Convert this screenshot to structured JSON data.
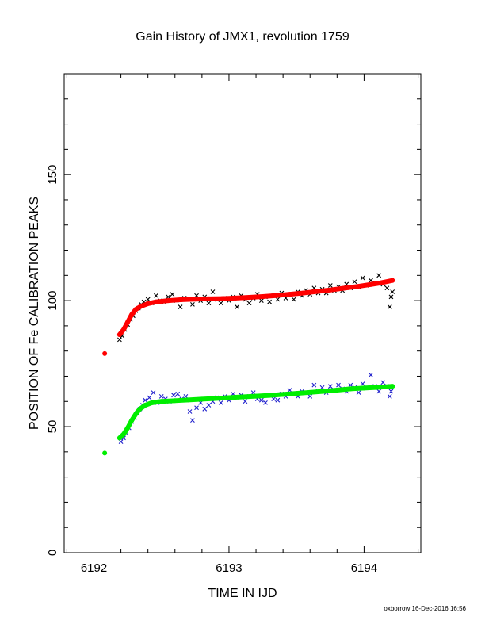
{
  "chart_data": {
    "type": "scatter",
    "title": "Gain History of JMX1, revolution 1759",
    "xlabel": "TIME IN IJD",
    "ylabel": "POSITION OF Fe CALIBRATION PEAKS",
    "xlim": [
      6191.78,
      6194.42
    ],
    "ylim": [
      0,
      190
    ],
    "x_ticks": [
      "6192",
      "6193",
      "6194"
    ],
    "y_ticks": [
      "0",
      "50",
      "100",
      "150"
    ],
    "x_minor_step": 0.2,
    "y_minor_step": 10,
    "grid": false,
    "series": [
      {
        "marker": "cross",
        "color": "#000000",
        "points": [
          [
            6192.19,
            84.5
          ],
          [
            6192.21,
            86.0
          ],
          [
            6192.23,
            88.5
          ],
          [
            6192.25,
            90.5
          ],
          [
            6192.27,
            92.5
          ],
          [
            6192.29,
            94.0
          ],
          [
            6192.31,
            96.0
          ],
          [
            6192.33,
            97.0
          ],
          [
            6192.35,
            98.5
          ],
          [
            6192.37,
            99.5
          ],
          [
            6192.4,
            100.5
          ],
          [
            6192.43,
            99.0
          ],
          [
            6192.46,
            102.0
          ],
          [
            6192.49,
            100.0
          ],
          [
            6192.52,
            99.5
          ],
          [
            6192.55,
            101.5
          ],
          [
            6192.58,
            102.5
          ],
          [
            6192.61,
            100.0
          ],
          [
            6192.64,
            97.5
          ],
          [
            6192.67,
            101.0
          ],
          [
            6192.7,
            100.5
          ],
          [
            6192.73,
            98.5
          ],
          [
            6192.76,
            102.0
          ],
          [
            6192.79,
            100.0
          ],
          [
            6192.82,
            101.5
          ],
          [
            6192.85,
            99.0
          ],
          [
            6192.88,
            103.5
          ],
          [
            6192.91,
            100.5
          ],
          [
            6192.94,
            99.0
          ],
          [
            6192.97,
            101.0
          ],
          [
            6193.0,
            100.0
          ],
          [
            6193.03,
            101.5
          ],
          [
            6193.06,
            97.5
          ],
          [
            6193.09,
            102.0
          ],
          [
            6193.12,
            100.5
          ],
          [
            6193.15,
            99.0
          ],
          [
            6193.18,
            101.0
          ],
          [
            6193.21,
            102.5
          ],
          [
            6193.24,
            100.0
          ],
          [
            6193.27,
            101.5
          ],
          [
            6193.3,
            99.5
          ],
          [
            6193.33,
            102.0
          ],
          [
            6193.36,
            100.5
          ],
          [
            6193.39,
            103.0
          ],
          [
            6193.42,
            101.0
          ],
          [
            6193.45,
            102.5
          ],
          [
            6193.48,
            100.5
          ],
          [
            6193.51,
            103.5
          ],
          [
            6193.54,
            102.0
          ],
          [
            6193.57,
            104.0
          ],
          [
            6193.6,
            102.5
          ],
          [
            6193.63,
            105.0
          ],
          [
            6193.66,
            103.0
          ],
          [
            6193.69,
            104.5
          ],
          [
            6193.72,
            103.0
          ],
          [
            6193.75,
            106.0
          ],
          [
            6193.78,
            104.0
          ],
          [
            6193.81,
            105.5
          ],
          [
            6193.84,
            104.0
          ],
          [
            6193.87,
            106.5
          ],
          [
            6193.9,
            105.0
          ],
          [
            6193.93,
            107.5
          ],
          [
            6193.96,
            105.5
          ],
          [
            6193.99,
            109.0
          ],
          [
            6194.02,
            106.0
          ],
          [
            6194.05,
            108.0
          ],
          [
            6194.08,
            107.0
          ],
          [
            6194.11,
            110.0
          ],
          [
            6194.14,
            106.5
          ],
          [
            6194.17,
            105.0
          ],
          [
            6194.2,
            101.5
          ],
          [
            6194.21,
            103.5
          ],
          [
            6194.19,
            97.5
          ]
        ]
      },
      {
        "marker": "cross",
        "color": "#1f1fcc",
        "points": [
          [
            6192.2,
            44.0
          ],
          [
            6192.22,
            45.5
          ],
          [
            6192.24,
            47.5
          ],
          [
            6192.26,
            49.5
          ],
          [
            6192.28,
            52.0
          ],
          [
            6192.3,
            53.5
          ],
          [
            6192.32,
            55.5
          ],
          [
            6192.34,
            57.0
          ],
          [
            6192.36,
            58.5
          ],
          [
            6192.38,
            60.5
          ],
          [
            6192.41,
            61.5
          ],
          [
            6192.44,
            63.5
          ],
          [
            6192.47,
            59.5
          ],
          [
            6192.5,
            62.0
          ],
          [
            6192.53,
            61.0
          ],
          [
            6192.56,
            60.0
          ],
          [
            6192.59,
            62.5
          ],
          [
            6192.62,
            63.0
          ],
          [
            6192.65,
            61.0
          ],
          [
            6192.68,
            62.0
          ],
          [
            6192.71,
            56.0
          ],
          [
            6192.73,
            52.5
          ],
          [
            6192.76,
            57.5
          ],
          [
            6192.79,
            59.5
          ],
          [
            6192.82,
            57.0
          ],
          [
            6192.85,
            58.5
          ],
          [
            6192.88,
            60.0
          ],
          [
            6192.91,
            61.5
          ],
          [
            6192.94,
            59.5
          ],
          [
            6192.97,
            62.0
          ],
          [
            6193.0,
            60.5
          ],
          [
            6193.03,
            63.0
          ],
          [
            6193.06,
            61.5
          ],
          [
            6193.09,
            62.5
          ],
          [
            6193.12,
            60.0
          ],
          [
            6193.15,
            62.0
          ],
          [
            6193.18,
            63.5
          ],
          [
            6193.21,
            61.0
          ],
          [
            6193.24,
            60.5
          ],
          [
            6193.27,
            59.5
          ],
          [
            6193.3,
            62.5
          ],
          [
            6193.33,
            61.0
          ],
          [
            6193.36,
            60.5
          ],
          [
            6193.39,
            63.0
          ],
          [
            6193.42,
            62.0
          ],
          [
            6193.45,
            64.5
          ],
          [
            6193.48,
            63.0
          ],
          [
            6193.51,
            62.0
          ],
          [
            6193.54,
            64.0
          ],
          [
            6193.57,
            63.5
          ],
          [
            6193.6,
            62.0
          ],
          [
            6193.63,
            66.5
          ],
          [
            6193.66,
            64.0
          ],
          [
            6193.69,
            65.5
          ],
          [
            6193.72,
            63.5
          ],
          [
            6193.75,
            66.0
          ],
          [
            6193.78,
            64.5
          ],
          [
            6193.81,
            66.5
          ],
          [
            6193.84,
            65.0
          ],
          [
            6193.87,
            64.0
          ],
          [
            6193.9,
            66.5
          ],
          [
            6193.93,
            65.5
          ],
          [
            6193.96,
            63.5
          ],
          [
            6193.99,
            67.0
          ],
          [
            6194.02,
            65.5
          ],
          [
            6194.05,
            70.5
          ],
          [
            6194.08,
            66.0
          ],
          [
            6194.11,
            64.0
          ],
          [
            6194.14,
            67.5
          ],
          [
            6194.17,
            66.0
          ],
          [
            6194.19,
            62.0
          ],
          [
            6194.2,
            64.0
          ]
        ]
      },
      {
        "marker": "fit",
        "color": "#ff0000",
        "points": [
          [
            6192.08,
            79.0
          ],
          [
            6192.19,
            86.5
          ],
          [
            6192.22,
            88.5
          ],
          [
            6192.25,
            91.5
          ],
          [
            6192.28,
            94.5
          ],
          [
            6192.31,
            96.5
          ],
          [
            6192.35,
            97.8
          ],
          [
            6192.4,
            98.8
          ],
          [
            6192.46,
            99.5
          ],
          [
            6192.55,
            100.0
          ],
          [
            6192.65,
            100.4
          ],
          [
            6192.75,
            100.6
          ],
          [
            6192.85,
            100.7
          ],
          [
            6192.95,
            100.8
          ],
          [
            6193.05,
            101.0
          ],
          [
            6193.15,
            101.3
          ],
          [
            6193.25,
            101.6
          ],
          [
            6193.35,
            102.0
          ],
          [
            6193.45,
            102.5
          ],
          [
            6193.55,
            103.0
          ],
          [
            6193.65,
            103.6
          ],
          [
            6193.75,
            104.2
          ],
          [
            6193.85,
            104.9
          ],
          [
            6193.95,
            105.6
          ],
          [
            6194.05,
            106.4
          ],
          [
            6194.12,
            107.0
          ],
          [
            6194.21,
            108.0
          ]
        ]
      },
      {
        "marker": "fit",
        "color": "#00ee00",
        "points": [
          [
            6192.08,
            39.5
          ],
          [
            6192.19,
            45.5
          ],
          [
            6192.22,
            47.0
          ],
          [
            6192.25,
            49.5
          ],
          [
            6192.28,
            52.5
          ],
          [
            6192.31,
            55.0
          ],
          [
            6192.34,
            57.0
          ],
          [
            6192.38,
            58.5
          ],
          [
            6192.43,
            59.5
          ],
          [
            6192.5,
            60.0
          ],
          [
            6192.6,
            60.3
          ],
          [
            6192.7,
            60.6
          ],
          [
            6192.8,
            60.9
          ],
          [
            6192.9,
            61.2
          ],
          [
            6193.0,
            61.5
          ],
          [
            6193.1,
            61.8
          ],
          [
            6193.2,
            62.1
          ],
          [
            6193.3,
            62.4
          ],
          [
            6193.4,
            62.8
          ],
          [
            6193.5,
            63.2
          ],
          [
            6193.6,
            63.6
          ],
          [
            6193.7,
            64.0
          ],
          [
            6193.8,
            64.5
          ],
          [
            6193.9,
            65.0
          ],
          [
            6194.0,
            65.3
          ],
          [
            6194.1,
            65.6
          ],
          [
            6194.21,
            66.0
          ]
        ]
      }
    ]
  },
  "footer": "oxborrow 16-Dec-2016 16:56"
}
